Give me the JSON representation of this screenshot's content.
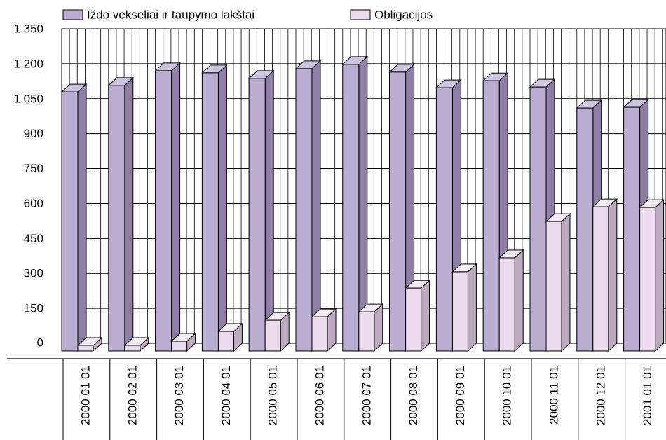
{
  "chart_data": {
    "type": "bar3d",
    "categories": [
      "2000 01 01",
      "2000 02 01",
      "2000 03 01",
      "2000 04 01",
      "2000 05 01",
      "2000 06 01",
      "2000 07 01",
      "2000 08 01",
      "2000 09 01",
      "2000 10 01",
      "2000 11 01",
      "2000 12 01",
      "2001 01 01"
    ],
    "series": [
      {
        "name": "Iždo vekseliai ir taupymo lakštai",
        "color": "#bcaed0",
        "side": "#8e7ea6",
        "top": "#cfc4df",
        "values": [
          1112,
          1140,
          1203,
          1194,
          1170,
          1212,
          1230,
          1197,
          1130,
          1160,
          1133,
          1043,
          1046
        ]
      },
      {
        "name": "Obligacijos",
        "color": "#eadcec",
        "side": "#bcaabf",
        "top": "#f3eaf4",
        "values": [
          24,
          24,
          42,
          84,
          132,
          147,
          168,
          270,
          340,
          400,
          556,
          619,
          616
        ]
      }
    ],
    "ylim": [
      0,
      1350
    ],
    "yticks": [
      0,
      150,
      300,
      450,
      600,
      750,
      900,
      {
        "value": 1050,
        "label": "1 050"
      },
      {
        "value": 1200,
        "label": "1 200"
      },
      {
        "value": 1350,
        "label": "1 350"
      }
    ],
    "grid": true
  }
}
